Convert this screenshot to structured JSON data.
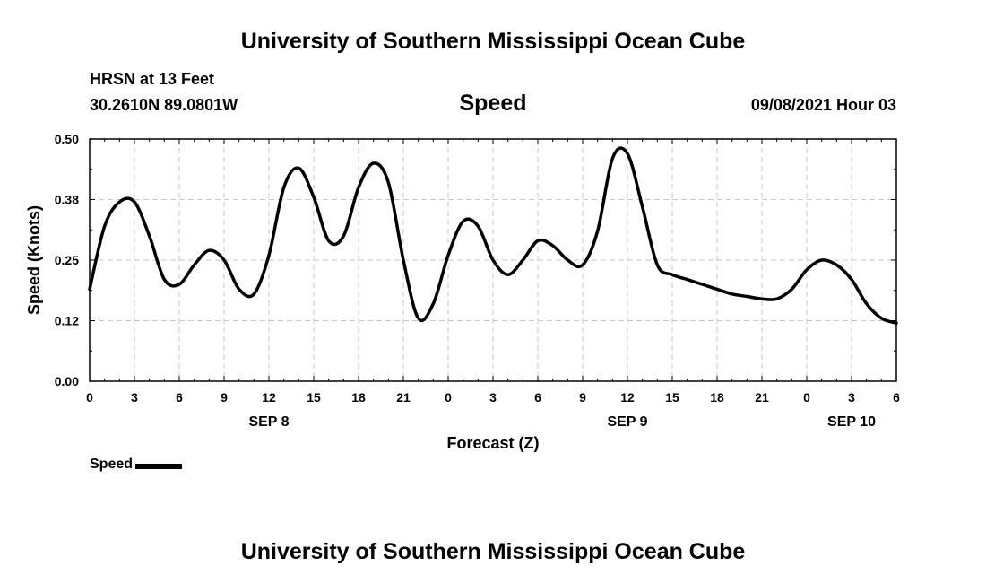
{
  "header": {
    "title": "University of Southern Mississippi Ocean Cube",
    "station": "HRSN at 13 Feet",
    "coords": "30.2610N  89.0801W",
    "variable": "Speed",
    "timestamp": "09/08/2021 Hour 03"
  },
  "footer": {
    "title": "University of Southern Mississippi Ocean Cube"
  },
  "legend": {
    "label": "Speed",
    "color": "#000000"
  },
  "chart_data": {
    "type": "line",
    "xlabel": "Forecast (Z)",
    "ylabel": "Speed (Knots)",
    "ylim": [
      0,
      0.5
    ],
    "xlim": [
      0,
      54
    ],
    "x_units": "forecast hours from 0Z SEP 8",
    "y_ticks": [
      "0.00",
      "0.12",
      "0.25",
      "0.38",
      "0.50"
    ],
    "y_tick_values": [
      0,
      0.125,
      0.25,
      0.375,
      0.5
    ],
    "x_ticks": [
      "0",
      "3",
      "6",
      "9",
      "12",
      "15",
      "18",
      "21",
      "0",
      "3",
      "6",
      "9",
      "12",
      "15",
      "18",
      "21",
      "0",
      "3",
      "6"
    ],
    "day_labels": [
      {
        "label": "SEP 8",
        "x": 12
      },
      {
        "label": "SEP 9",
        "x": 36
      },
      {
        "label": "SEP 10",
        "x": 51
      }
    ],
    "grid": true,
    "series": [
      {
        "name": "Speed",
        "color": "#000000",
        "x": [
          0,
          1,
          2,
          3,
          4,
          5,
          6,
          7,
          8,
          9,
          10,
          11,
          12,
          13,
          14,
          15,
          16,
          17,
          18,
          19,
          20,
          21,
          22,
          23,
          24,
          25,
          26,
          27,
          28,
          29,
          30,
          31,
          32,
          33,
          34,
          35,
          36,
          37,
          38,
          39,
          40,
          41,
          42,
          43,
          44,
          45,
          46,
          47,
          48,
          49,
          50,
          51,
          52,
          53,
          54
        ],
        "y": [
          0.19,
          0.32,
          0.37,
          0.37,
          0.3,
          0.21,
          0.2,
          0.24,
          0.27,
          0.25,
          0.19,
          0.18,
          0.26,
          0.4,
          0.44,
          0.38,
          0.29,
          0.3,
          0.4,
          0.45,
          0.41,
          0.25,
          0.13,
          0.16,
          0.26,
          0.33,
          0.32,
          0.25,
          0.22,
          0.25,
          0.29,
          0.28,
          0.25,
          0.24,
          0.31,
          0.46,
          0.47,
          0.36,
          0.24,
          0.22,
          0.21,
          0.2,
          0.19,
          0.18,
          0.175,
          0.17,
          0.17,
          0.19,
          0.23,
          0.25,
          0.24,
          0.21,
          0.16,
          0.13,
          0.12
        ]
      }
    ]
  }
}
